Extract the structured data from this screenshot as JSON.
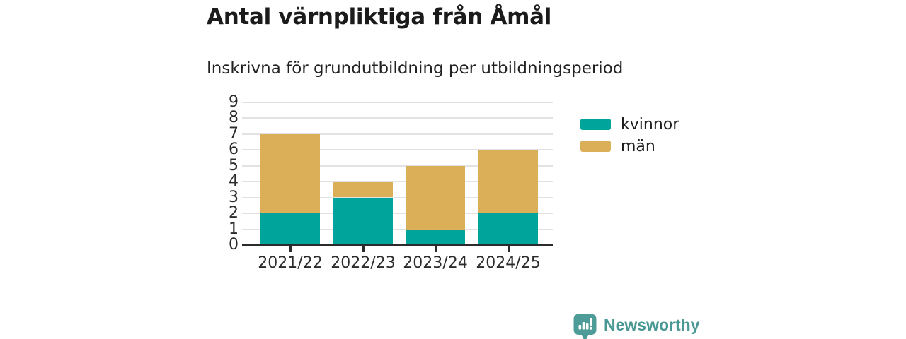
{
  "title": "Antal värnpliktiga från Åmål",
  "subtitle": "Inskrivna för grundutbildning per utbildningsperiod",
  "footer": {
    "brand": "Newsworthy"
  },
  "colors": {
    "kvinnor": "#00A49B",
    "man": "#DBAE58",
    "brand": "#4E9C98",
    "brand_text": "#4A9894",
    "grid": "#E2E2E2",
    "axis": "#2B2B2B",
    "text": "#1F1F1F"
  },
  "chart_data": {
    "type": "bar",
    "stacked": true,
    "title": "Antal värnpliktiga från Åmål",
    "subtitle": "Inskrivna för grundutbildning per utbildningsperiod",
    "categories": [
      "2021/22",
      "2022/23",
      "2023/24",
      "2024/25"
    ],
    "series": [
      {
        "name": "kvinnor",
        "color": "#00A49B",
        "values": [
          2,
          3,
          1,
          2
        ]
      },
      {
        "name": "män",
        "color": "#DBAE58",
        "values": [
          5,
          1,
          4,
          4
        ]
      }
    ],
    "stack_totals": [
      7,
      4,
      5,
      6
    ],
    "xlabel": "",
    "ylabel": "",
    "ylim": [
      0,
      9
    ],
    "yticks": [
      0,
      1,
      2,
      3,
      4,
      5,
      6,
      7,
      8,
      9
    ],
    "grid": true,
    "legend_position": "right"
  },
  "legend": {
    "items": [
      {
        "label": "kvinnor",
        "color": "#00A49B"
      },
      {
        "label": "män",
        "color": "#DBAE58"
      }
    ]
  }
}
